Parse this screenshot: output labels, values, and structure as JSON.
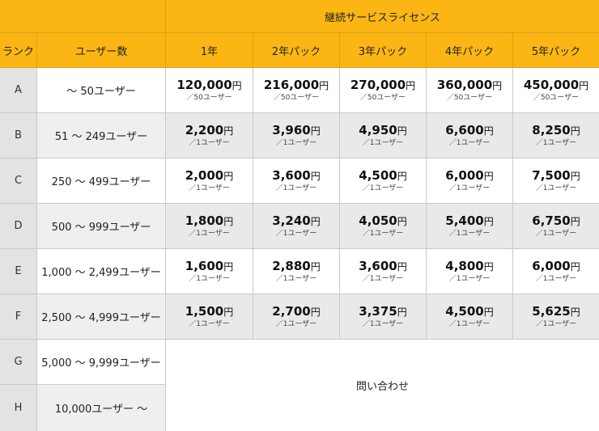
{
  "header": {
    "group_label": "継続サービスライセンス",
    "rank_label": "ランク",
    "users_label": "ユーザー数",
    "years": [
      "1年",
      "2年パック",
      "3年パック",
      "4年パック",
      "5年パック"
    ]
  },
  "rows": [
    {
      "rank": "A",
      "users": "～ 50ユーザー",
      "prices": [
        "120,000",
        "216,000",
        "270,000",
        "360,000",
        "450,000"
      ],
      "per": "／50ユーザー"
    },
    {
      "rank": "B",
      "users": "51 ～ 249ユーザー",
      "prices": [
        "2,200",
        "3,960",
        "4,950",
        "6,600",
        "8,250"
      ],
      "per": "／1ユーザー"
    },
    {
      "rank": "C",
      "users": "250 ～ 499ユーザー",
      "prices": [
        "2,000",
        "3,600",
        "4,500",
        "6,000",
        "7,500"
      ],
      "per": "／1ユーザー"
    },
    {
      "rank": "D",
      "users": "500 ～ 999ユーザー",
      "prices": [
        "1,800",
        "3,240",
        "4,050",
        "5,400",
        "6,750"
      ],
      "per": "／1ユーザー"
    },
    {
      "rank": "E",
      "users": "1,000 ～ 2,499ユーザー",
      "prices": [
        "1,600",
        "2,880",
        "3,600",
        "4,800",
        "6,000"
      ],
      "per": "／1ユーザー"
    },
    {
      "rank": "F",
      "users": "2,500 ～ 4,999ユーザー",
      "prices": [
        "1,500",
        "2,700",
        "3,375",
        "4,500",
        "5,625"
      ],
      "per": "／1ユーザー"
    },
    {
      "rank": "G",
      "users": "5,000 ～ 9,999ユーザー"
    },
    {
      "rank": "H",
      "users": "10,000ユーザー ～"
    }
  ],
  "currency_suffix": "円",
  "contact_text": "問い合わせ",
  "colors": {
    "header_bg": "#fbb614",
    "rank_bg": "#e3e3e3",
    "stripe_bg": "#e9e9e9"
  }
}
